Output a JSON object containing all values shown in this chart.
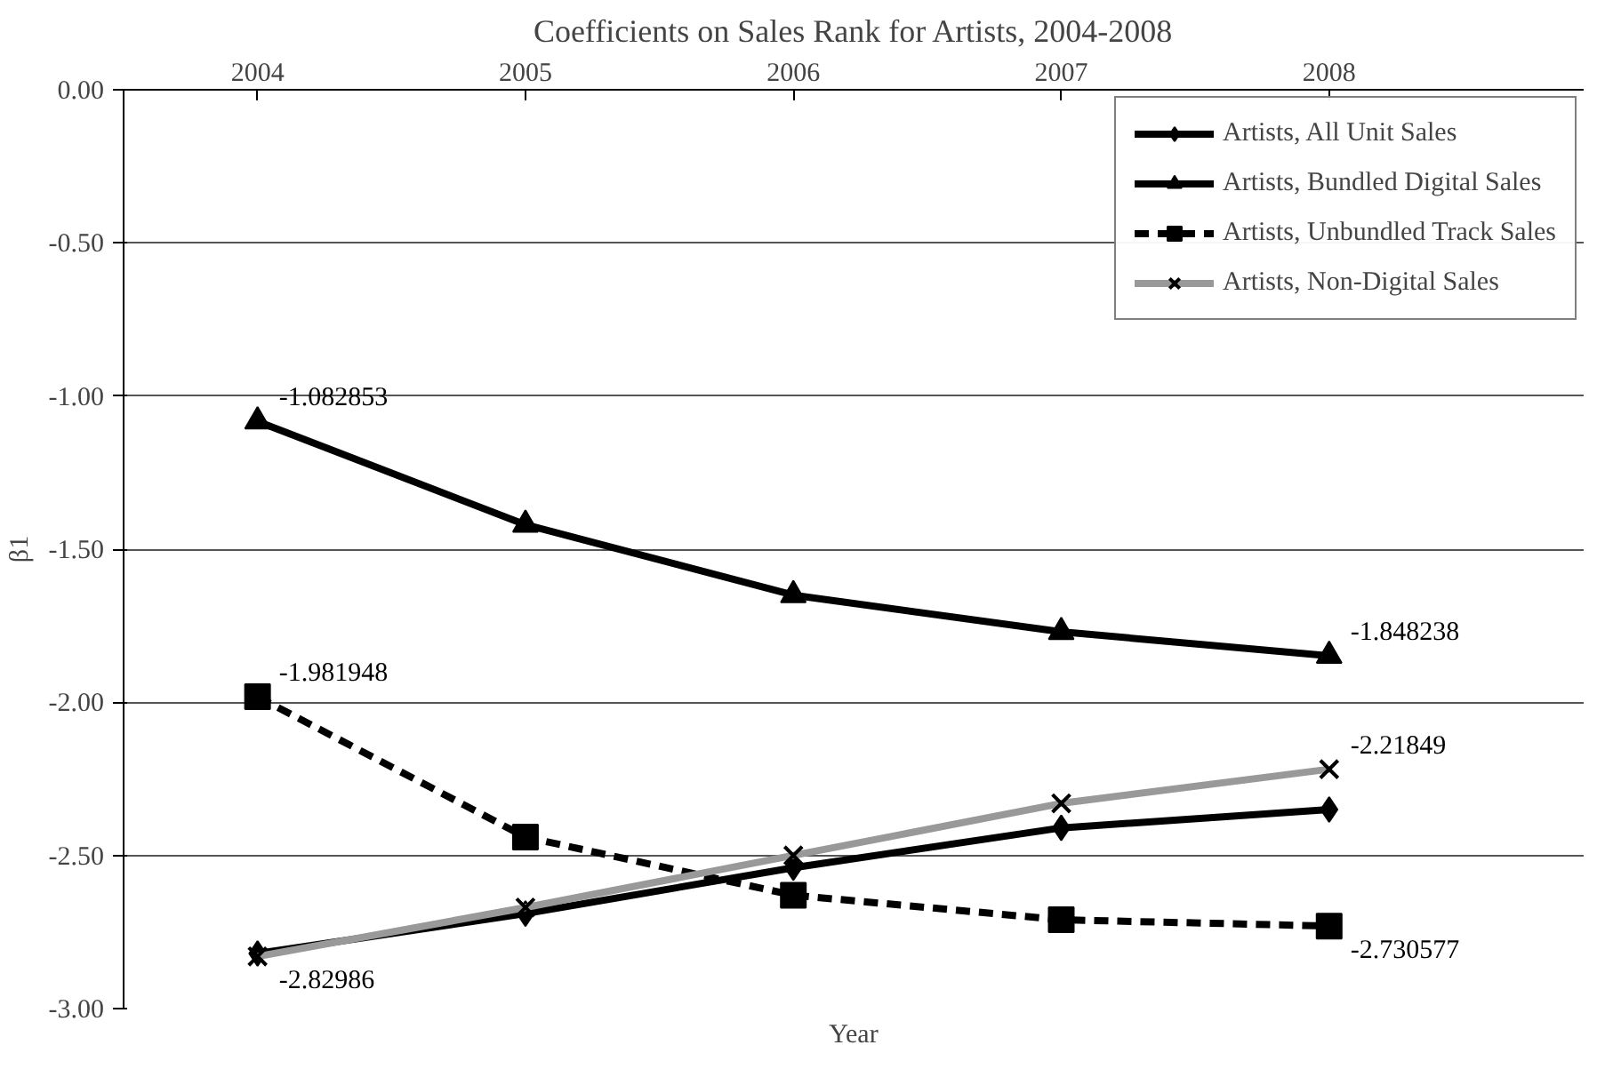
{
  "chart_data": {
    "type": "line",
    "title": "Coefficients on Sales Rank for Artists, 2004-2008",
    "xlabel": "Year",
    "ylabel": "β1",
    "categories": [
      "2004",
      "2005",
      "2006",
      "2007",
      "2008"
    ],
    "series": [
      {
        "name": "Artists, All Unit Sales",
        "color": "#000000",
        "marker": "diamond",
        "line_style": "solid",
        "values": [
          -2.82,
          -2.69,
          -2.54,
          -2.41,
          -2.35
        ]
      },
      {
        "name": "Artists, Bundled Digital Sales",
        "color": "#000000",
        "marker": "triangle",
        "line_style": "solid",
        "values": [
          -1.082853,
          -1.42,
          -1.65,
          -1.77,
          -1.848238
        ],
        "value_labels": [
          "-1.082853",
          null,
          null,
          null,
          "-1.848238"
        ]
      },
      {
        "name": "Artists, Unbundled Track Sales",
        "color": "#000000",
        "marker": "square",
        "line_style": "dashed",
        "values": [
          -1.981948,
          -2.44,
          -2.63,
          -2.71,
          -2.730577
        ],
        "value_labels": [
          "-1.981948",
          null,
          null,
          null,
          "-2.730577"
        ]
      },
      {
        "name": "Artists, Non-Digital Sales",
        "color": "#999999",
        "marker": "cross",
        "line_style": "solid",
        "values": [
          -2.82986,
          -2.67,
          -2.5,
          -2.33,
          -2.21849
        ],
        "value_labels": [
          "-2.82986",
          null,
          null,
          null,
          "-2.21849"
        ]
      }
    ],
    "ylim": [
      -3,
      0
    ],
    "yticks": [
      {
        "value": -3,
        "label": "-3.00"
      },
      {
        "value": -2.5,
        "label": "-2.50"
      },
      {
        "value": -2,
        "label": "-2.00"
      },
      {
        "value": -1.5,
        "label": "-1.50"
      },
      {
        "value": -1,
        "label": "-1.00"
      },
      {
        "value": -0.5,
        "label": "-0.50"
      },
      {
        "value": 0,
        "label": "0.00"
      }
    ],
    "grid": "y",
    "legend": "top right"
  }
}
